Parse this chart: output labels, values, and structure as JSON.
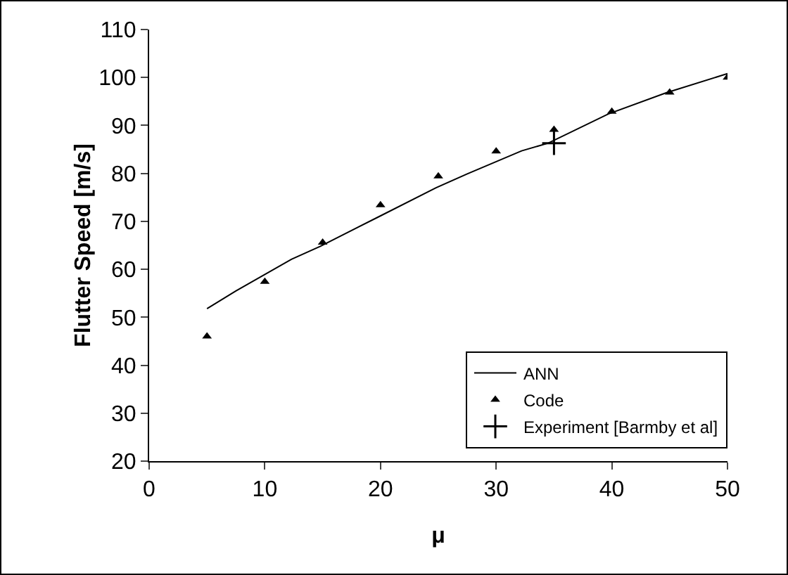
{
  "chart_data": {
    "type": "line",
    "xlabel": "μ",
    "ylabel": "Flutter Speed [m/s]",
    "xlim": [
      0,
      50
    ],
    "xticks": [
      0,
      10,
      20,
      30,
      40,
      50
    ],
    "ylim": [
      20,
      110
    ],
    "yticks": [
      20,
      30,
      40,
      50,
      60,
      70,
      80,
      90,
      100,
      110
    ],
    "grid": false,
    "legend": "bottom right",
    "series": [
      {
        "name": "ANN",
        "color": "#000000",
        "marker": "none",
        "line_style": "solid",
        "x": [
          5,
          7.5,
          12.3,
          14.8,
          19.8,
          24.8,
          27.5,
          32.2,
          34.5,
          39.7,
          44.7,
          50
        ],
        "values": [
          51.8,
          55.5,
          62.1,
          64.8,
          70.9,
          77,
          79.9,
          84.7,
          86.3,
          92.4,
          96.8,
          100.8
        ]
      },
      {
        "name": "Code",
        "type": "scatter",
        "color": "#000000",
        "marker": "triangle",
        "x": [
          5,
          10,
          15,
          20,
          25,
          30,
          35,
          40,
          45,
          50
        ],
        "values": [
          46,
          57.4,
          65.6,
          73.4,
          79.4,
          84.6,
          89.1,
          92.9,
          96.9,
          100
        ]
      },
      {
        "name": "Experiment [Barmby et al]",
        "type": "scatter",
        "color": "#000000",
        "marker": "cross",
        "x": [
          35
        ],
        "values": [
          86.3
        ]
      }
    ]
  }
}
